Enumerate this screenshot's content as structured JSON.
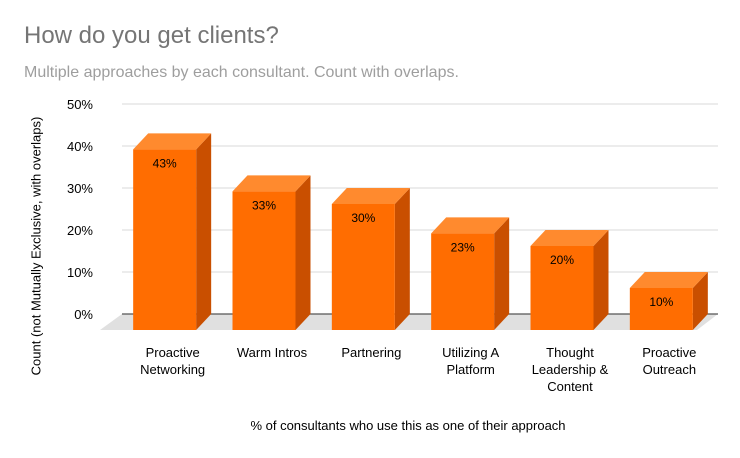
{
  "chart_data": {
    "type": "bar",
    "title": "How do you get clients?",
    "subtitle": "Multiple approaches by each consultant. Count with overlaps.",
    "xlabel": "% of consultants who use this as one of their approach",
    "ylabel": "Count (not Mutually Exclusive, with overlaps)",
    "categories": [
      [
        "Proactive",
        "Networking"
      ],
      [
        "Warm Intros"
      ],
      [
        "Partnering"
      ],
      [
        "Utilizing A",
        "Platform"
      ],
      [
        "Thought",
        "Leadership &",
        "Content"
      ],
      [
        "Proactive",
        "Outreach"
      ]
    ],
    "values": [
      43,
      33,
      30,
      23,
      20,
      10
    ],
    "data_labels": [
      "43%",
      "33%",
      "30%",
      "23%",
      "20%",
      "10%"
    ],
    "ylim": [
      0,
      50
    ],
    "yticks": [
      "0%",
      "10%",
      "20%",
      "30%",
      "40%",
      "50%"
    ],
    "grid": true,
    "style": "3d",
    "colors": {
      "front": "#ff6d01",
      "side": "#c94f00",
      "top": "#ff8a2e",
      "floor": "#e0e0e0",
      "grid": "#d9d9d9"
    }
  }
}
